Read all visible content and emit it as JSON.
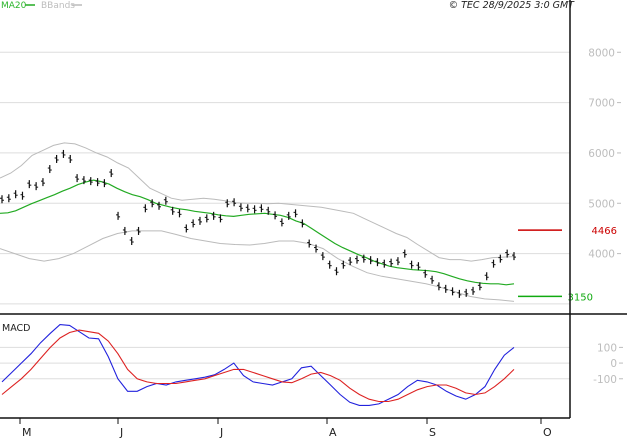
{
  "legend": {
    "ma_label": "MA20",
    "bb_label": "BBands"
  },
  "copyright": "© TEC 28/9/2025 3:0 GMT",
  "macd_title": "MACD",
  "colors": {
    "price": "#111111",
    "ma20": "#22aa22",
    "bbands": "#bbbbbb",
    "macd": "#2222dd",
    "signal": "#dd2222",
    "resistance": "#cc0000",
    "support": "#11aa11",
    "grid": "#dddddd"
  },
  "chart_data": [
    {
      "type": "line",
      "name": "price",
      "x_tick_labels": [
        "M",
        "J",
        "J",
        "A",
        "S",
        "O"
      ],
      "y_tick_labels": [
        "4000",
        "5000",
        "6000",
        "7000",
        "8000"
      ],
      "ylim": [
        2800,
        8800
      ],
      "grid": true,
      "price_bars": [
        5080,
        5100,
        5180,
        5150,
        5380,
        5340,
        5420,
        5680,
        5880,
        5980,
        5880,
        5500,
        5460,
        5440,
        5420,
        5400,
        5600,
        4750,
        4450,
        4250,
        4450,
        4900,
        5000,
        4950,
        5050,
        4850,
        4800,
        4500,
        4600,
        4650,
        4700,
        4750,
        4700,
        5000,
        5020,
        4920,
        4900,
        4880,
        4900,
        4850,
        4760,
        4620,
        4750,
        4800,
        4600,
        4200,
        4100,
        3950,
        3780,
        3650,
        3780,
        3850,
        3880,
        3900,
        3870,
        3830,
        3800,
        3820,
        3850,
        4000,
        3780,
        3750,
        3600,
        3480,
        3350,
        3300,
        3250,
        3200,
        3220,
        3260,
        3350,
        3550,
        3800,
        3900,
        4000,
        3950
      ],
      "ma20": [
        4800,
        4810,
        4850,
        4920,
        4990,
        5050,
        5110,
        5170,
        5240,
        5300,
        5370,
        5420,
        5460,
        5430,
        5380,
        5300,
        5230,
        5170,
        5130,
        5070,
        5000,
        4960,
        4920,
        4890,
        4870,
        4840,
        4820,
        4800,
        4770,
        4750,
        4740,
        4760,
        4780,
        4790,
        4800,
        4780,
        4760,
        4720,
        4650,
        4600,
        4500,
        4400,
        4300,
        4200,
        4120,
        4050,
        3980,
        3920,
        3850,
        3800,
        3750,
        3720,
        3700,
        3680,
        3670,
        3660,
        3640,
        3600,
        3550,
        3500,
        3460,
        3430,
        3410,
        3400,
        3400,
        3380,
        3400
      ],
      "bb_upper": [
        5500,
        5600,
        5750,
        5950,
        6050,
        6150,
        6200,
        6180,
        6100,
        6000,
        5920,
        5800,
        5700,
        5500,
        5300,
        5200,
        5100,
        5060,
        5080,
        5100,
        5080,
        5050,
        5010,
        5000,
        5000,
        4990,
        5000,
        4980,
        4960,
        4940,
        4920,
        4880,
        4840,
        4800,
        4700,
        4600,
        4500,
        4400,
        4320,
        4180,
        4050,
        3920,
        3880,
        3880,
        3850,
        3880,
        3920,
        3930,
        3940
      ],
      "bb_lower": [
        4100,
        4000,
        3900,
        3850,
        3900,
        4000,
        4150,
        4300,
        4400,
        4450,
        4450,
        4450,
        4380,
        4300,
        4250,
        4200,
        4180,
        4170,
        4200,
        4250,
        4250,
        4200,
        4100,
        3900,
        3750,
        3620,
        3550,
        3500,
        3450,
        3400,
        3330,
        3240,
        3150,
        3100,
        3080,
        3050
      ],
      "annotations": [
        {
          "label": "4466",
          "value": 4466,
          "role": "resistance"
        },
        {
          "label": "3150",
          "value": 3150,
          "role": "support"
        }
      ]
    },
    {
      "type": "line",
      "name": "MACD",
      "y_tick_labels": [
        "100",
        "0",
        "-100"
      ],
      "ylim": [
        -350,
        300
      ],
      "macd": [
        -120,
        -60,
        0,
        60,
        130,
        190,
        245,
        240,
        200,
        160,
        155,
        40,
        -100,
        -180,
        -180,
        -150,
        -130,
        -140,
        -120,
        -110,
        -100,
        -90,
        -75,
        -40,
        0,
        -80,
        -120,
        -130,
        -140,
        -120,
        -100,
        -30,
        -20,
        -80,
        -140,
        -200,
        -250,
        -270,
        -270,
        -260,
        -230,
        -200,
        -150,
        -110,
        -120,
        -140,
        -180,
        -210,
        -230,
        -200,
        -150,
        -40,
        50,
        100
      ],
      "signal": [
        -200,
        -150,
        -100,
        -40,
        30,
        100,
        160,
        195,
        210,
        200,
        190,
        140,
        60,
        -40,
        -100,
        -120,
        -130,
        -130,
        -130,
        -120,
        -110,
        -100,
        -80,
        -60,
        -40,
        -40,
        -60,
        -80,
        -100,
        -120,
        -125,
        -100,
        -70,
        -60,
        -80,
        -110,
        -160,
        -200,
        -230,
        -245,
        -245,
        -230,
        -200,
        -170,
        -150,
        -140,
        -140,
        -160,
        -190,
        -200,
        -190,
        -150,
        -100,
        -40
      ]
    }
  ]
}
